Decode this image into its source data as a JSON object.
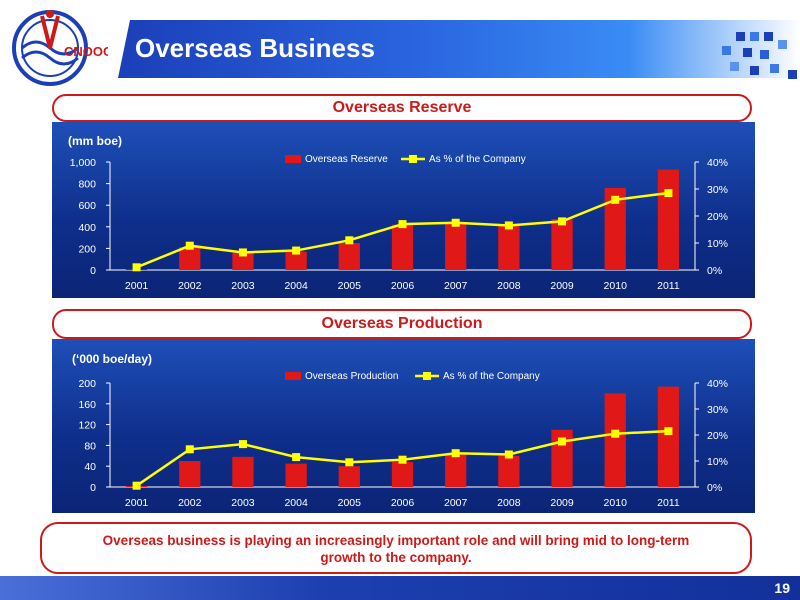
{
  "page": {
    "title": "Overseas Business",
    "number": "19"
  },
  "logo": {
    "text": "CNOOC"
  },
  "colors": {
    "bar": "#e01818",
    "line": "#ffff00",
    "panel": "#0f2f8c",
    "accent": "#cc1a1a"
  },
  "charts": {
    "reserve": {
      "heading": "Overseas Reserve"
    },
    "production": {
      "heading": "Overseas Production"
    }
  },
  "conclusion": {
    "line1": "Overseas business is playing an increasingly important role and will bring mid to long-term",
    "line2": "growth to the company."
  },
  "chart_data": [
    {
      "type": "bar",
      "title": "Overseas Reserve",
      "ylabel": "(mm boe)",
      "categories": [
        "2001",
        "2002",
        "2003",
        "2004",
        "2005",
        "2006",
        "2007",
        "2008",
        "2009",
        "2010",
        "2011"
      ],
      "ylim": [
        0,
        1000
      ],
      "yticks": [
        "0",
        "200",
        "400",
        "600",
        "800",
        "1,000"
      ],
      "y2lim": [
        0,
        40
      ],
      "y2ticks": [
        "0%",
        "10%",
        "20%",
        "30%",
        "40%"
      ],
      "legend": "top-center",
      "series": [
        {
          "name": "Overseas Reserve",
          "kind": "bar",
          "axis": "left",
          "values": [
            5,
            210,
            160,
            170,
            250,
            420,
            440,
            420,
            470,
            760,
            930
          ]
        },
        {
          "name": "As % of the Company",
          "kind": "line",
          "axis": "right",
          "values": [
            1,
            9,
            6.5,
            7.2,
            11,
            17,
            17.5,
            16.5,
            18,
            26,
            28.5
          ]
        }
      ]
    },
    {
      "type": "bar",
      "title": "Overseas Production",
      "ylabel": "(‘000 boe/day)",
      "categories": [
        "2001",
        "2002",
        "2003",
        "2004",
        "2005",
        "2006",
        "2007",
        "2008",
        "2009",
        "2010",
        "2011"
      ],
      "ylim": [
        0,
        200
      ],
      "yticks": [
        "0",
        "40",
        "80",
        "120",
        "160",
        "200"
      ],
      "y2lim": [
        0,
        40
      ],
      "y2ticks": [
        "0%",
        "10%",
        "20%",
        "30%",
        "40%"
      ],
      "legend": "top-center",
      "series": [
        {
          "name": "Overseas Production",
          "kind": "bar",
          "axis": "left",
          "values": [
            2,
            50,
            58,
            45,
            40,
            48,
            64,
            60,
            110,
            180,
            193
          ]
        },
        {
          "name": "As % of the Company",
          "kind": "line",
          "axis": "right",
          "values": [
            0.5,
            14.5,
            16.5,
            11.5,
            9.5,
            10.5,
            13,
            12.5,
            17.5,
            20.5,
            21.5
          ]
        }
      ]
    }
  ]
}
